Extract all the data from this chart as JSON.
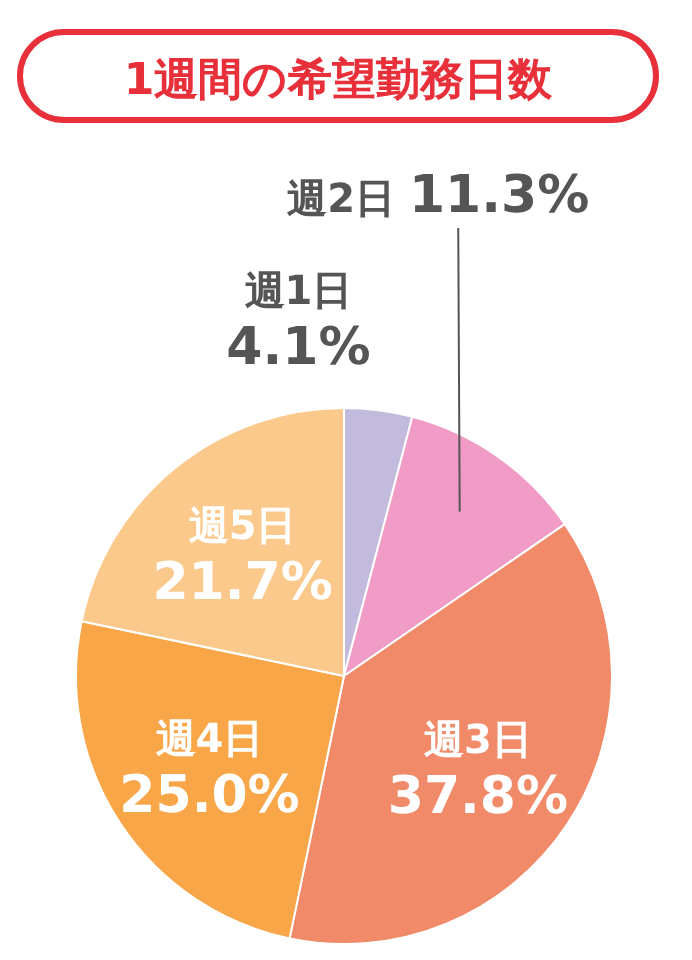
{
  "chart_data": {
    "type": "pie",
    "title": "1週間の希望勤務日数",
    "categories": [
      "週1日",
      "週2日",
      "週3日",
      "週4日",
      "週5日"
    ],
    "values": [
      4.1,
      11.3,
      37.8,
      25.0,
      21.7
    ],
    "value_labels": [
      "4.1%",
      "11.3%",
      "37.8%",
      "25.0%",
      "21.7%"
    ],
    "colors": [
      "#c3bbdd",
      "#f19cc6",
      "#f08a68",
      "#f8a648",
      "#fbc98c"
    ]
  }
}
